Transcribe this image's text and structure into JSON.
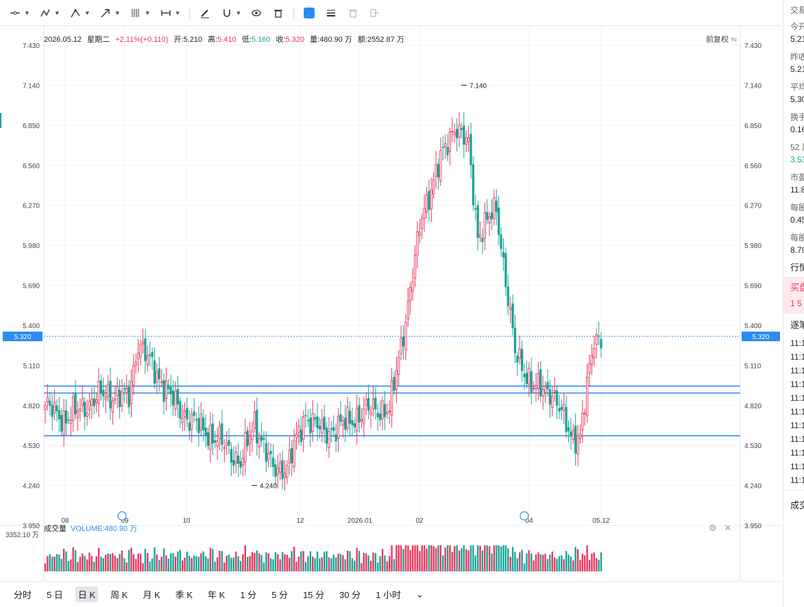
{
  "toolbar": {
    "tools": [
      "trend-line-tool",
      "multi-point-tool",
      "pitchfork-tool",
      "arrow-tool",
      "fib-tool",
      "measure-tool",
      "brush-tool",
      "magnet-tool",
      "visibility-tool",
      "delete-tool",
      "color-tool",
      "line-style-tool",
      "trash-tool",
      "exit-tool"
    ]
  },
  "info": {
    "date": "2026.05.12",
    "weekday": "星期二",
    "change": "+2.11%(+0.110)",
    "open_label": "开:",
    "open": "5.210",
    "high_label": "高:",
    "high": "5.410",
    "low_label": "低:",
    "low": "5.160",
    "close_label": "收:",
    "close": "5.320",
    "volume_label": "量:",
    "volume": "480.90 万",
    "amount_label": "额:",
    "amount": "2552.87 万"
  },
  "adjust_label": "前复权",
  "chart_data": {
    "type": "candlestick",
    "y_ticks": [
      "7.430",
      "7.140",
      "6.850",
      "6.560",
      "6.270",
      "5.980",
      "5.690",
      "5.400",
      "5.110",
      "4.820",
      "4.530",
      "4.240",
      "3.950"
    ],
    "ylim": [
      3.95,
      7.43
    ],
    "x_ticks": [
      "08",
      "09",
      "10",
      "12",
      "2026.01",
      "02",
      "04",
      "05.12"
    ],
    "current_price": "5.320",
    "max_label": "7.140",
    "min_label": "4.240",
    "horizontal_lines": [
      4.96,
      4.91,
      4.6
    ],
    "colors": {
      "up": "#e8345a",
      "down": "#17a398",
      "line": "#2b8cf2"
    }
  },
  "volume": {
    "label": "成交量",
    "value_label": "VOLUME:480.90 万",
    "max_label": "3352.10 万"
  },
  "periods": [
    "分时",
    "5 日",
    "日 K",
    "周 K",
    "月 K",
    "季 K",
    "年 K",
    "1 分",
    "5 分",
    "15 分",
    "30 分",
    "1 小时"
  ],
  "active_period": "日 K",
  "right_panel": {
    "items": [
      {
        "label": "交易",
        "value": ""
      },
      {
        "label": "今开",
        "value": "5.21"
      },
      {
        "label": "昨收",
        "value": "5.21"
      },
      {
        "label": "平均",
        "value": "5.30"
      },
      {
        "label": "换手",
        "value": "0.16"
      },
      {
        "label": "52 周",
        "value": "3.53"
      },
      {
        "label": "市盈",
        "value": "11.8"
      },
      {
        "label": "每股",
        "value": "0.45"
      },
      {
        "label": "每股",
        "value": "8.79"
      }
    ],
    "section_market": "行情",
    "buy_label": "买盘",
    "buy_row": "1 5",
    "section_trades": "逐笔",
    "trade_times": [
      "11:1",
      "11:1",
      "11:1",
      "11:1",
      "11:1",
      "11:1",
      "11:1",
      "11:1",
      "11:1",
      "11:1",
      "11:1"
    ],
    "section_deal": "成交"
  }
}
